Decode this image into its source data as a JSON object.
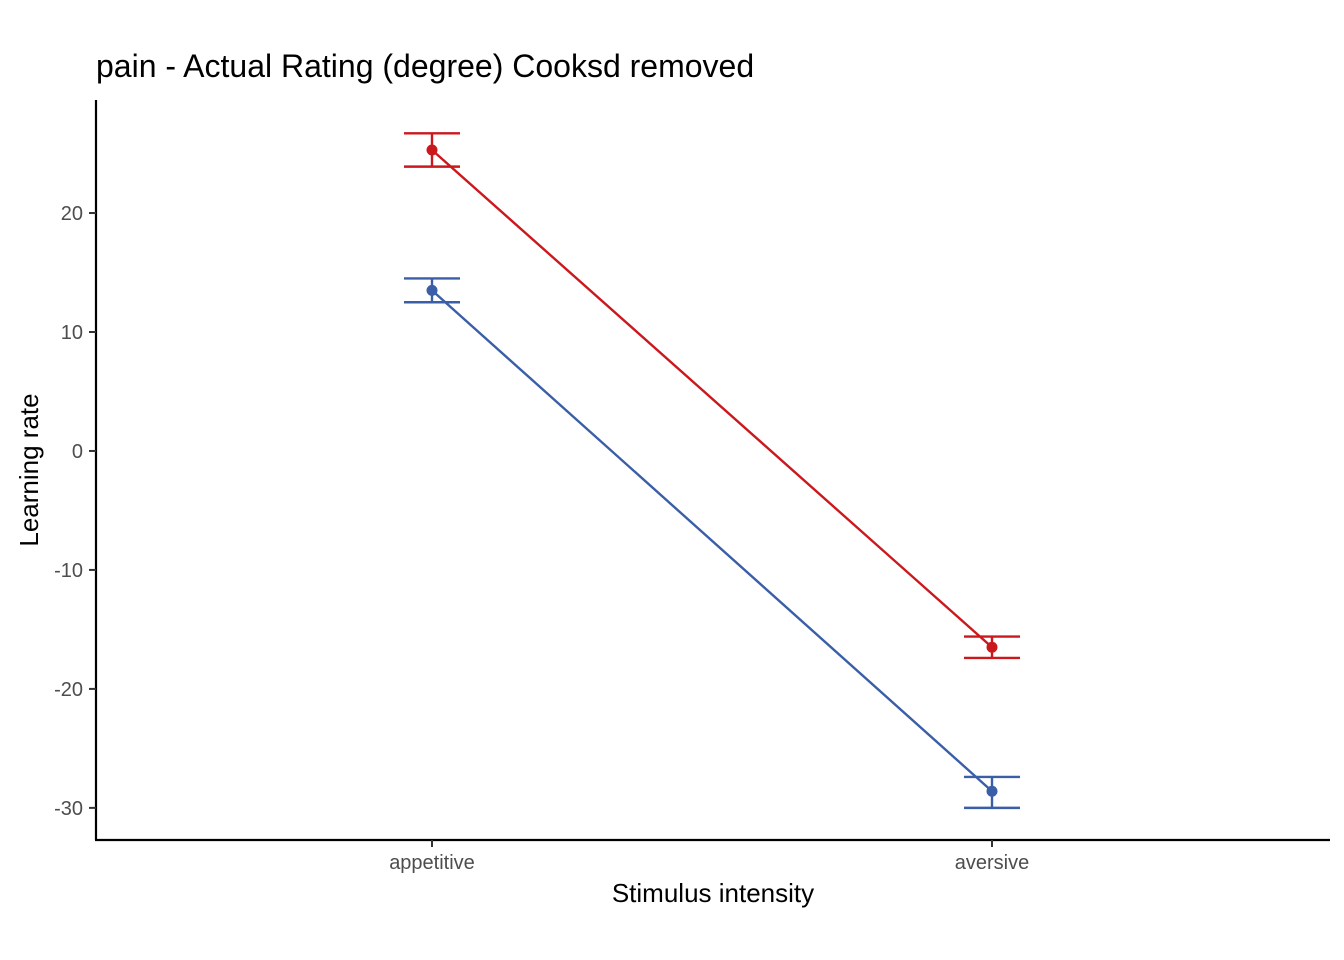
{
  "chart_data": {
    "type": "line",
    "title": "pain  - Actual Rating (degree) Cooksd removed",
    "xlabel": "Stimulus intensity",
    "ylabel": "Learning rate",
    "categories": [
      "appetitive",
      "aversive"
    ],
    "y_ticks": [
      20,
      10,
      0,
      -10,
      -20,
      -30
    ],
    "ylim": [
      -32.7,
      29.5
    ],
    "grid": false,
    "legend": "none",
    "series": [
      {
        "color": "#cb181d",
        "values": [
          25.3,
          -16.5
        ],
        "error_low": [
          23.9,
          -17.4
        ],
        "error_high": [
          26.7,
          -15.6
        ]
      },
      {
        "color": "#3a5ea7",
        "values": [
          13.5,
          -28.6
        ],
        "error_low": [
          12.5,
          -30.0
        ],
        "error_high": [
          14.5,
          -27.4
        ]
      }
    ]
  }
}
